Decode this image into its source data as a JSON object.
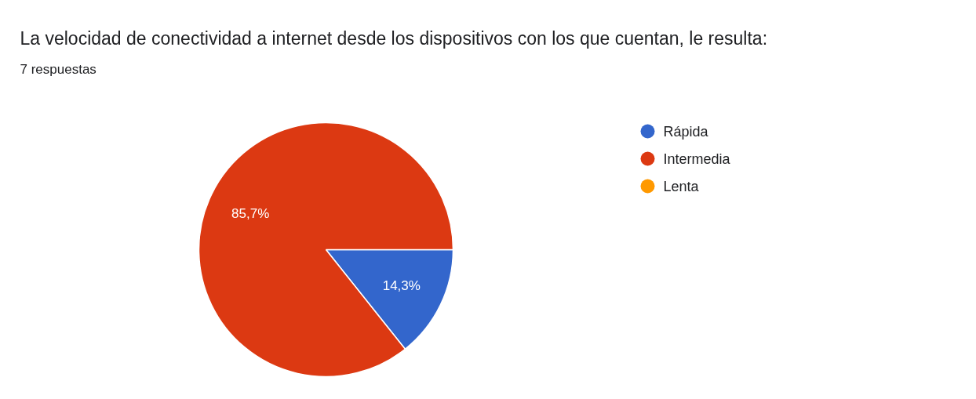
{
  "chart_data": {
    "type": "pie",
    "title": "La velocidad de conectividad a internet desde los dispositivos con los que cuentan, le resulta:",
    "subtitle": "7 respuestas",
    "categories": [
      "Rápida",
      "Intermedia",
      "Lenta"
    ],
    "values": [
      14.3,
      85.7,
      0
    ],
    "colors": [
      "#3366cc",
      "#dc3912",
      "#ff9900"
    ],
    "value_labels": [
      "14,3%",
      "85,7%",
      null
    ],
    "legend": "top right"
  }
}
